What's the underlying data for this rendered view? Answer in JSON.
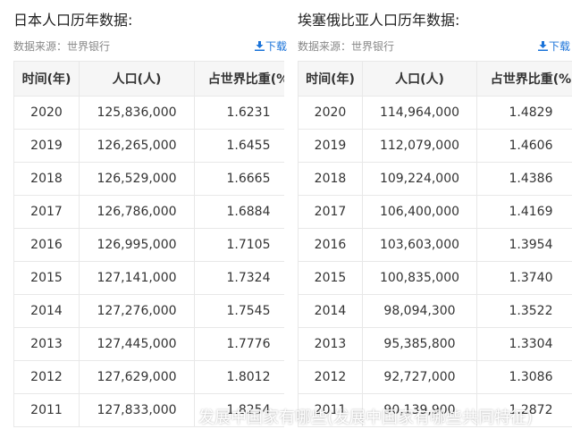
{
  "panels": [
    {
      "title": "日本人口历年数据:",
      "source": "数据来源：世界银行",
      "download": "下载",
      "header": [
        "时间(年)",
        "人口(人)",
        "占世界比重(%"
      ],
      "rows": [
        [
          "2020",
          "125,836,000",
          "1.6231"
        ],
        [
          "2019",
          "126,265,000",
          "1.6455"
        ],
        [
          "2018",
          "126,529,000",
          "1.6665"
        ],
        [
          "2017",
          "126,786,000",
          "1.6884"
        ],
        [
          "2016",
          "126,995,000",
          "1.7105"
        ],
        [
          "2015",
          "127,141,000",
          "1.7324"
        ],
        [
          "2014",
          "127,276,000",
          "1.7545"
        ],
        [
          "2013",
          "127,445,000",
          "1.7776"
        ],
        [
          "2012",
          "127,629,000",
          "1.8012"
        ],
        [
          "2011",
          "127,833,000",
          "1.8254"
        ]
      ]
    },
    {
      "title": "埃塞俄比亚人口历年数据:",
      "source": "数据来源：世界银行",
      "download": "下载",
      "header": [
        "时间(年)",
        "人口(人)",
        "占世界比重(%"
      ],
      "rows": [
        [
          "2020",
          "114,964,000",
          "1.4829"
        ],
        [
          "2019",
          "112,079,000",
          "1.4606"
        ],
        [
          "2018",
          "109,224,000",
          "1.4386"
        ],
        [
          "2017",
          "106,400,000",
          "1.4169"
        ],
        [
          "2016",
          "103,603,000",
          "1.3954"
        ],
        [
          "2015",
          "100,835,000",
          "1.3740"
        ],
        [
          "2014",
          "98,094,300",
          "1.3522"
        ],
        [
          "2013",
          "95,385,800",
          "1.3304"
        ],
        [
          "2012",
          "92,727,000",
          "1.3086"
        ],
        [
          "2011",
          "90,139,900",
          "1.2872"
        ]
      ]
    }
  ],
  "watermark": "发展中国家有哪些(发展中国家有哪些共同特征)"
}
